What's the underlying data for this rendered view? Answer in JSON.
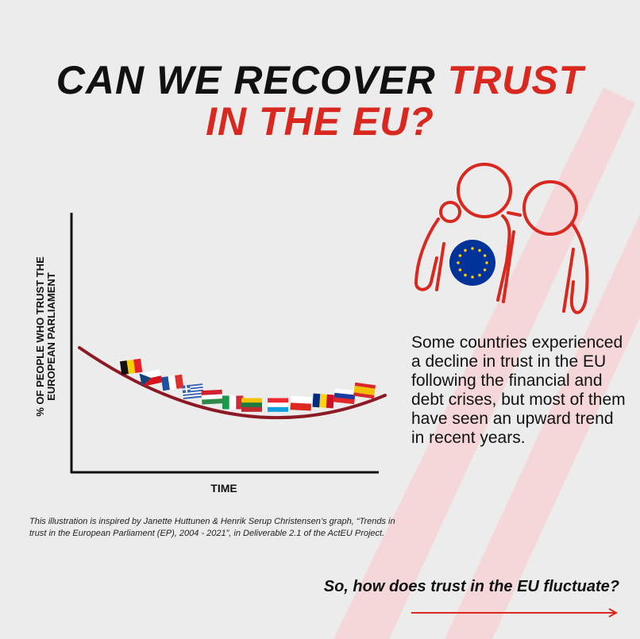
{
  "title": {
    "line1_black": "CAN WE RECOVER ",
    "line1_red": "TRUST",
    "line2_red": "IN THE EU?"
  },
  "chart": {
    "y_label_line1": "% OF PEOPLE WHO TRUST THE",
    "y_label_line2": "EUROPEAN PARLIAMENT",
    "x_label": "TIME",
    "trend": "decline then upward (U-shape)",
    "flags": [
      "belgium-flag",
      "czechia-flag",
      "france-flag",
      "greece-flag",
      "hungary-flag",
      "italy-flag",
      "lithuania-flag",
      "luxembourg-flag",
      "poland-flag",
      "romania-flag",
      "slovenia-flag",
      "spain-flag"
    ],
    "curve_color": "#8b1a24"
  },
  "description": "Some countries experienced a decline in trust in the EU following the financial and debt crises, but most of them have seen an upward trend in recent years.",
  "credit": "This illustration is inspired by Janette Huttunen & Henrik Serup Christensen’s graph, “Trends in trust in the European Parliament (EP), 2004 - 2021”, in Deliverable 2.1 of the ActEU Project.",
  "question": "So, how does trust in the EU fluctuate?",
  "colors": {
    "accent": "#d9281f",
    "background": "#ececec",
    "stripe": "#f5d5d7",
    "eu_blue": "#003399",
    "eu_star": "#ffcc00"
  }
}
